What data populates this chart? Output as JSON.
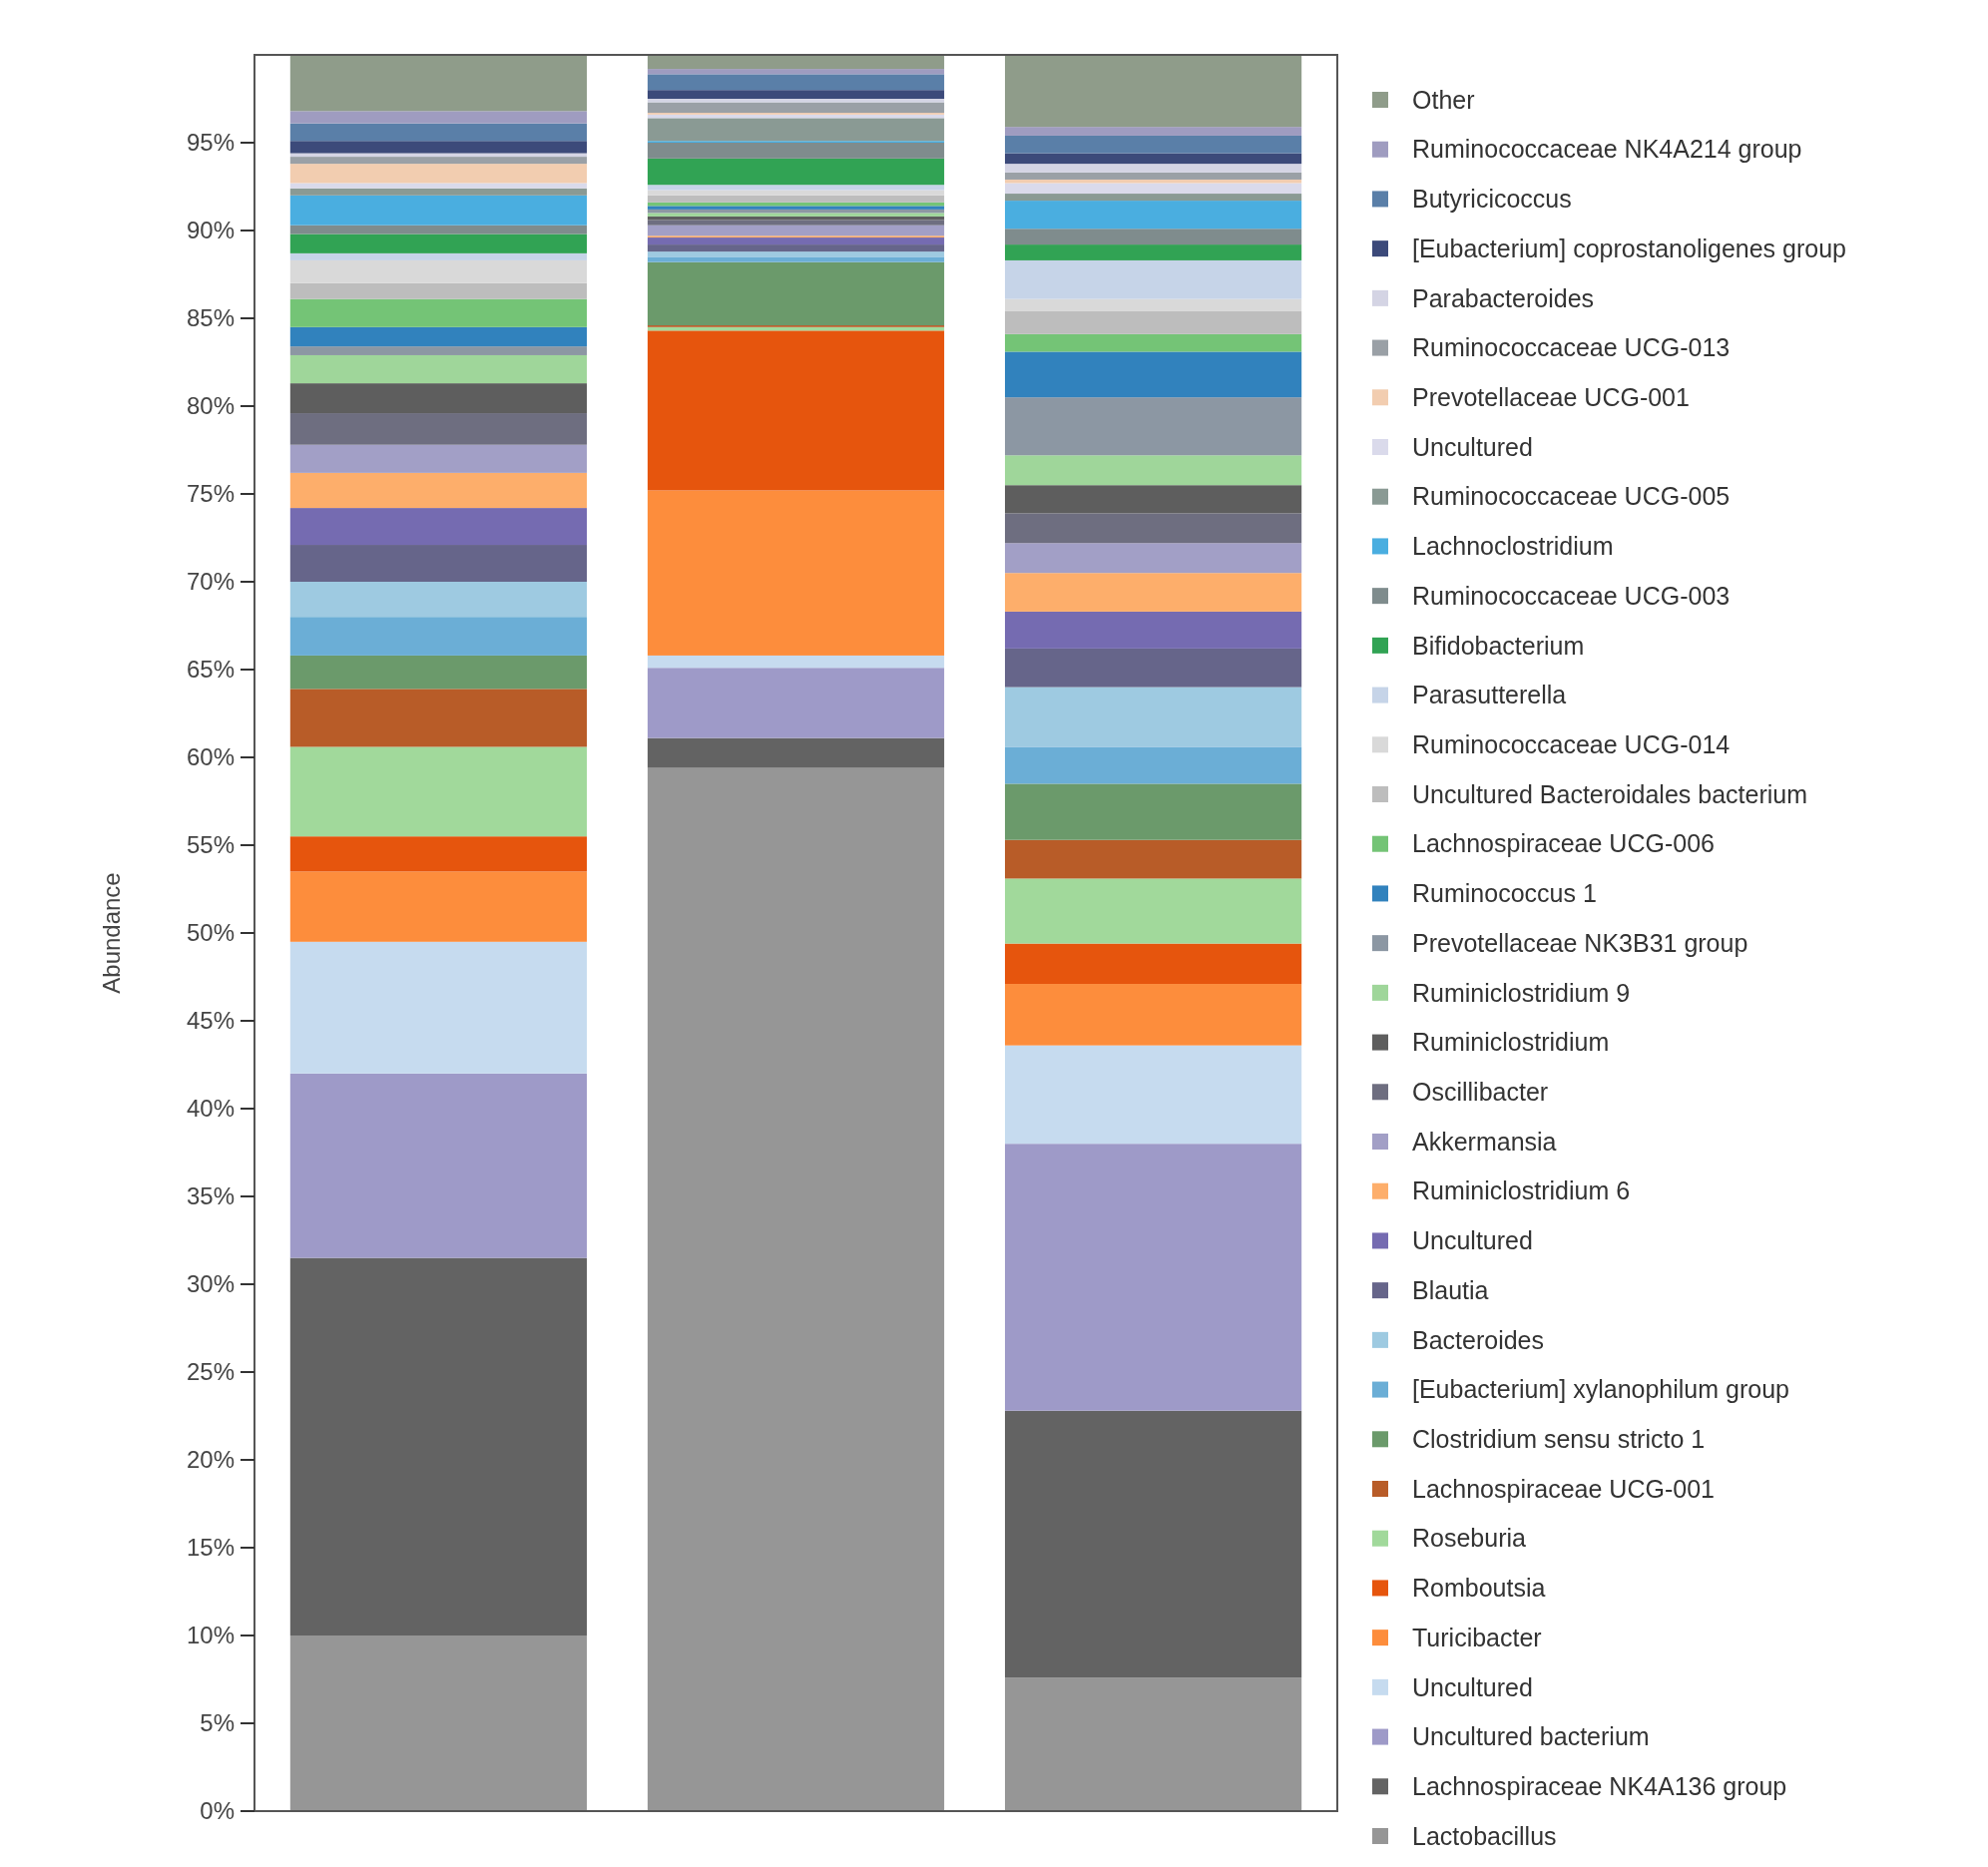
{
  "chart_data": {
    "type": "bar",
    "stacked": true,
    "ylabel": "Abundance",
    "categories": [
      null,
      null,
      null
    ],
    "ylim": [
      0,
      100
    ],
    "yticks": [
      {
        "value": 0,
        "label": "0%"
      },
      {
        "value": 5,
        "label": "5%"
      },
      {
        "value": 10,
        "label": "10%"
      },
      {
        "value": 15,
        "label": "15%"
      },
      {
        "value": 20,
        "label": "20%"
      },
      {
        "value": 25,
        "label": "25%"
      },
      {
        "value": 30,
        "label": "30%"
      },
      {
        "value": 35,
        "label": "35%"
      },
      {
        "value": 40,
        "label": "40%"
      },
      {
        "value": 45,
        "label": "45%"
      },
      {
        "value": 50,
        "label": "50%"
      },
      {
        "value": 55,
        "label": "55%"
      },
      {
        "value": 60,
        "label": "60%"
      },
      {
        "value": 65,
        "label": "65%"
      },
      {
        "value": 70,
        "label": "70%"
      },
      {
        "value": 75,
        "label": "75%"
      },
      {
        "value": 80,
        "label": "80%"
      },
      {
        "value": 85,
        "label": "85%"
      },
      {
        "value": 90,
        "label": "90%"
      },
      {
        "value": 95,
        "label": "95%"
      }
    ],
    "legend": "right",
    "grid": false,
    "series": [
      {
        "name": "Lactobacillus",
        "color": "#969696",
        "values": [
          10,
          59.4,
          7.6
        ]
      },
      {
        "name": "Lachnospiraceae NK4A136 group",
        "color": "#636363",
        "values": [
          21.5,
          1.7,
          15.2
        ]
      },
      {
        "name": "Uncultured bacterium",
        "color": "#9e9ac8",
        "values": [
          10.5,
          4.0,
          15.2
        ]
      },
      {
        "name": "Uncultured",
        "color": "#c6dbef",
        "values": [
          7.5,
          0.7,
          5.6
        ]
      },
      {
        "name": "Turicibacter",
        "color": "#fd8d3c",
        "values": [
          4.0,
          9.4,
          3.5
        ]
      },
      {
        "name": "Romboutsia",
        "color": "#e6550d",
        "values": [
          2.0,
          9.1,
          2.3
        ]
      },
      {
        "name": "Roseburia",
        "color": "#a1d99b",
        "values": [
          5.1,
          0.2,
          3.7
        ]
      },
      {
        "name": "Lachnospiraceae UCG-001",
        "color": "#b85c28",
        "values": [
          3.3,
          0.1,
          2.2
        ]
      },
      {
        "name": "Clostridium sensu stricto 1",
        "color": "#6b9a6b",
        "values": [
          1.9,
          3.6,
          3.2
        ]
      },
      {
        "name": "[Eubacterium] xylanophilum group",
        "color": "#6baed6",
        "values": [
          2.2,
          0.3,
          2.1
        ]
      },
      {
        "name": "Bacteroides",
        "color": "#9ecae1",
        "values": [
          2.0,
          0.3,
          3.4
        ]
      },
      {
        "name": "Blautia",
        "color": "#66658a",
        "values": [
          2.1,
          0.4,
          2.2
        ]
      },
      {
        "name": "Uncultured",
        "color": "#756bb1",
        "values": [
          2.1,
          0.4,
          2.1
        ]
      },
      {
        "name": "Ruminiclostridium 6",
        "color": "#fdae6b",
        "values": [
          2.0,
          0.1,
          2.2
        ]
      },
      {
        "name": "Akkermansia",
        "color": "#a29fc6",
        "values": [
          1.6,
          0.6,
          1.7
        ]
      },
      {
        "name": "Oscillibacter",
        "color": "#6e6e80",
        "values": [
          1.8,
          0.3,
          1.7
        ]
      },
      {
        "name": "Ruminiclostridium",
        "color": "#5e5e5e",
        "values": [
          1.7,
          0.2,
          1.6
        ]
      },
      {
        "name": "Ruminiclostridium 9",
        "color": "#9fd69a",
        "values": [
          1.6,
          0.2,
          1.7
        ]
      },
      {
        "name": "Prevotellaceae NK3B31 group",
        "color": "#8c97a3",
        "values": [
          0.5,
          0.2,
          3.3
        ]
      },
      {
        "name": "Ruminococcus 1",
        "color": "#3182bd",
        "values": [
          1.1,
          0.2,
          2.6
        ]
      },
      {
        "name": "Lachnospiraceae UCG-006",
        "color": "#74c476",
        "values": [
          1.6,
          0.2,
          1.0
        ]
      },
      {
        "name": "Uncultured Bacteroidales bacterium",
        "color": "#bdbdbd",
        "values": [
          0.9,
          0.4,
          1.3
        ]
      },
      {
        "name": "Ruminococcaceae UCG-014",
        "color": "#d9d9d9",
        "values": [
          1.3,
          0.3,
          0.7
        ]
      },
      {
        "name": "Parasutterella",
        "color": "#c6d4e8",
        "values": [
          0.4,
          0.3,
          2.2
        ]
      },
      {
        "name": "Bifidobacterium",
        "color": "#31a354",
        "values": [
          1.1,
          1.5,
          0.9
        ]
      },
      {
        "name": "Ruminococcaceae UCG-003",
        "color": "#7f8c8d",
        "values": [
          0.5,
          0.9,
          0.9
        ]
      },
      {
        "name": "Lachnoclostridium",
        "color": "#4aaee0",
        "values": [
          1.7,
          0.1,
          1.6
        ]
      },
      {
        "name": "Ruminococcaceae UCG-005",
        "color": "#8a9a94",
        "values": [
          0.4,
          1.3,
          0.4
        ]
      },
      {
        "name": "Uncultured",
        "color": "#dadaeb",
        "values": [
          0.3,
          0.2,
          0.6
        ]
      },
      {
        "name": "Prevotellaceae UCG-001",
        "color": "#f2cdb0",
        "values": [
          1.1,
          0.1,
          0.2
        ]
      },
      {
        "name": "Ruminococcaceae UCG-013",
        "color": "#9aa0a6",
        "values": [
          0.4,
          0.6,
          0.4
        ]
      },
      {
        "name": "Parabacteroides",
        "color": "#d4d4e4",
        "values": [
          0.2,
          0.2,
          0.5
        ]
      },
      {
        "name": "[Eubacterium] coprostanoligenes group",
        "color": "#3c4a7a",
        "values": [
          0.7,
          0.5,
          0.6
        ]
      },
      {
        "name": "Butyricicoccus",
        "color": "#5a7fa8",
        "values": [
          1.0,
          0.9,
          1.0
        ]
      },
      {
        "name": "Ruminococcaceae NK4A214 group",
        "color": "#9f9cc0",
        "values": [
          0.7,
          0.3,
          0.5
        ]
      },
      {
        "name": "Other",
        "color": "#8f9c8a",
        "values": [
          3.2,
          0.8,
          4.1
        ]
      }
    ]
  }
}
